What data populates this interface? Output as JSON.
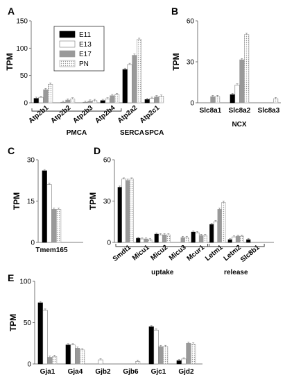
{
  "legend": [
    "E11",
    "E13",
    "E17",
    "PN"
  ],
  "series_styles": [
    {
      "fill": "#000000",
      "stroke": "#000000",
      "pattern": "none"
    },
    {
      "fill": "#ffffff",
      "stroke": "#777777",
      "pattern": "none"
    },
    {
      "fill": "#999999",
      "stroke": "#999999",
      "pattern": "none"
    },
    {
      "fill": "#ffffff",
      "stroke": "#999999",
      "pattern": "dots"
    }
  ],
  "chart_data": [
    {
      "panel": "A",
      "type": "bar",
      "ylabel": "TPM",
      "ylim": [
        0,
        150
      ],
      "yticks": [
        0,
        50,
        100,
        150
      ],
      "categories": [
        "Atp2b1",
        "Atp2b2",
        "Atp2b3",
        "Atp2b4",
        "Atp2a2",
        "Atp2c1"
      ],
      "series": [
        {
          "name": "E11",
          "values": [
            8,
            0,
            0,
            4,
            61,
            6
          ]
        },
        {
          "name": "E13",
          "values": [
            10,
            1,
            1,
            7,
            70,
            8
          ]
        },
        {
          "name": "E17",
          "values": [
            24,
            5,
            3,
            13,
            87,
            11
          ]
        },
        {
          "name": "PN",
          "values": [
            34,
            7,
            4,
            15,
            116,
            12
          ]
        }
      ],
      "groups": [
        {
          "label": "PMCA",
          "from": 0,
          "to": 3
        },
        {
          "label": "SERCA",
          "from": 4,
          "to": 4
        },
        {
          "label": "SPCA",
          "from": 5,
          "to": 5
        }
      ]
    },
    {
      "panel": "B",
      "type": "bar",
      "ylabel": "TPM",
      "ylim": [
        0,
        60
      ],
      "yticks": [
        0,
        30,
        60
      ],
      "categories": [
        "Slc8a1",
        "Slc8a2",
        "Slc8a3"
      ],
      "series": [
        {
          "name": "E11",
          "values": [
            0,
            6,
            0
          ]
        },
        {
          "name": "E13",
          "values": [
            0,
            13,
            0
          ]
        },
        {
          "name": "E17",
          "values": [
            4.5,
            31.5,
            0
          ]
        },
        {
          "name": "PN",
          "values": [
            4.5,
            50,
            3
          ]
        }
      ],
      "xlabel": "NCX"
    },
    {
      "panel": "C",
      "type": "bar",
      "ylabel": "TPM",
      "ylim": [
        0,
        30
      ],
      "yticks": [
        0,
        15,
        30
      ],
      "categories": [
        "Tmem165"
      ],
      "series": [
        {
          "name": "E11",
          "values": [
            26
          ]
        },
        {
          "name": "E13",
          "values": [
            21
          ]
        },
        {
          "name": "E17",
          "values": [
            12
          ]
        },
        {
          "name": "PN",
          "values": [
            12
          ]
        }
      ]
    },
    {
      "panel": "D",
      "type": "bar",
      "ylabel": "TPM",
      "ylim": [
        0,
        60
      ],
      "yticks": [
        0,
        30,
        60
      ],
      "categories": [
        "Smdt1",
        "Micu1",
        "Micu2",
        "Micu3",
        "Mcur1",
        "Letm1",
        "Letm2",
        "Slc8b1"
      ],
      "series": [
        {
          "name": "E11",
          "values": [
            40,
            3,
            6,
            0,
            7.5,
            13,
            2,
            2
          ]
        },
        {
          "name": "E13",
          "values": [
            46,
            2.5,
            5.5,
            0,
            7,
            15,
            4,
            0
          ]
        },
        {
          "name": "E17",
          "values": [
            45,
            2.5,
            5.5,
            3.5,
            5,
            24,
            4.5,
            0
          ]
        },
        {
          "name": "PN",
          "values": [
            46,
            2,
            5.5,
            3.5,
            5,
            29,
            4.5,
            0
          ]
        }
      ],
      "groups": [
        {
          "label": "uptake",
          "from": 0,
          "to": 4
        },
        {
          "label": "release",
          "from": 5,
          "to": 7
        }
      ]
    },
    {
      "panel": "E",
      "type": "bar",
      "ylabel": "TPM",
      "ylim": [
        0,
        100
      ],
      "yticks": [
        0,
        50,
        100
      ],
      "categories": [
        "Gja1",
        "Gja4",
        "Gjb2",
        "Gjb6",
        "Gjc1",
        "Gjd2"
      ],
      "series": [
        {
          "name": "E11",
          "values": [
            74,
            23,
            0,
            0,
            45,
            4
          ]
        },
        {
          "name": "E13",
          "values": [
            65,
            23,
            5,
            0,
            41,
            6
          ]
        },
        {
          "name": "E17",
          "values": [
            8,
            19,
            0,
            0,
            21,
            25
          ]
        },
        {
          "name": "PN",
          "values": [
            9,
            17,
            0,
            3,
            21,
            24
          ]
        }
      ]
    }
  ]
}
